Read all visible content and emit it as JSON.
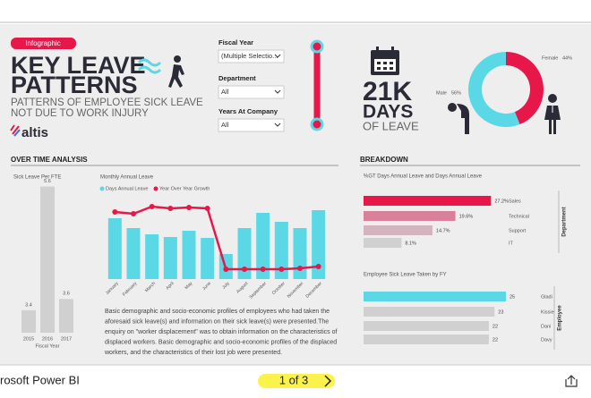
{
  "header": {
    "badge": "Infographic",
    "title_lines": [
      "KEY LEAVE",
      "PATTERNS"
    ],
    "subtitle_lines": [
      "PATTERNS OF EMPLOYEE SICK LEAVE",
      "NOT DUE TO WORK INJURY"
    ],
    "logo": "altis"
  },
  "filters": [
    {
      "label": "Fiscal Year",
      "value": "(Multiple Selectio..."
    },
    {
      "label": "Department",
      "value": "All"
    },
    {
      "label": "Years At Company",
      "value": "All"
    }
  ],
  "kpi": {
    "value": "21K",
    "line1": "DAYS",
    "line2": "OF LEAVE"
  },
  "sections": [
    "OVER TIME ANALYSIS",
    "BREAKDOWN"
  ],
  "gender_chart": {
    "type": "pie",
    "categories": [
      "Female",
      "Male"
    ],
    "values": [
      44,
      56
    ],
    "value_labels": [
      "44%",
      "56%"
    ],
    "colors": [
      "#e8174a",
      "#5ad8e6"
    ]
  },
  "sick_leave_chart": {
    "type": "bar",
    "title": "Sick Leave Per FTE",
    "x_label": "Fiscal Year",
    "categories": [
      "2015",
      "2016",
      "2017"
    ],
    "values": [
      3.4,
      5.6,
      3.6
    ],
    "color": "#d0d0d0",
    "ylim": [
      3,
      5.8
    ]
  },
  "monthly_chart": {
    "type": "bar-line",
    "title": "Monthly Annual Leave",
    "categories": [
      "January",
      "February",
      "March",
      "April",
      "May",
      "June",
      "July",
      "August",
      "September",
      "October",
      "November",
      "December"
    ],
    "ylim": [
      0,
      100
    ],
    "series": [
      {
        "name": "Days Annual Leave",
        "color": "#5ad8e6",
        "values": [
          68,
          57,
          50,
          47,
          54,
          46,
          28,
          57,
          74,
          64,
          57,
          77
        ]
      },
      {
        "name": "Year Over Year Growth",
        "color": "#e8174a",
        "values": [
          75,
          73,
          81,
          79,
          80,
          79,
          11,
          11,
          11,
          11,
          12,
          14
        ]
      }
    ]
  },
  "paragraph": [
    "Basic demographic and socio-economic profiles of employees who had taken the",
    "aforesaid sick leave(s) and information on their sick leave(s) were presented.The",
    "enquiry on \"worker displacement\" was to obtain information on the characteristics of",
    "displaced workers. Basic demographic and socio-economic profiles of the displaced",
    "workers, and the characteristics of their lost job were presented."
  ],
  "department_chart": {
    "type": "hbar",
    "title": "%GT Days Annual Leave and Days Annual Leave",
    "axis_label": "Department",
    "categories": [
      "Sales",
      "Technical",
      "Support",
      "IT"
    ],
    "values": [
      27.2,
      19.6,
      14.7,
      8.1
    ],
    "value_labels": [
      "27.2%",
      "19.6%",
      "14.7%",
      "8.1%"
    ],
    "colors": [
      "#e8174a",
      "#d9819a",
      "#d3b3bd",
      "#d0d0d0"
    ],
    "xlim": [
      0,
      30
    ]
  },
  "employee_chart": {
    "type": "hbar",
    "title": "Employee Sick Leave Taken by FY",
    "axis_label": "Employee",
    "categories": [
      "Gladi",
      "Kissie",
      "Dani",
      "Davy"
    ],
    "values": [
      25,
      23,
      22,
      22
    ],
    "colors": [
      "#5ad8e6",
      "#d0d0d0",
      "#d0d0d0",
      "#d0d0d0"
    ],
    "xlim": [
      0,
      25
    ]
  },
  "footer": {
    "app": "rosoft Power BI",
    "page": "1 of 3"
  }
}
